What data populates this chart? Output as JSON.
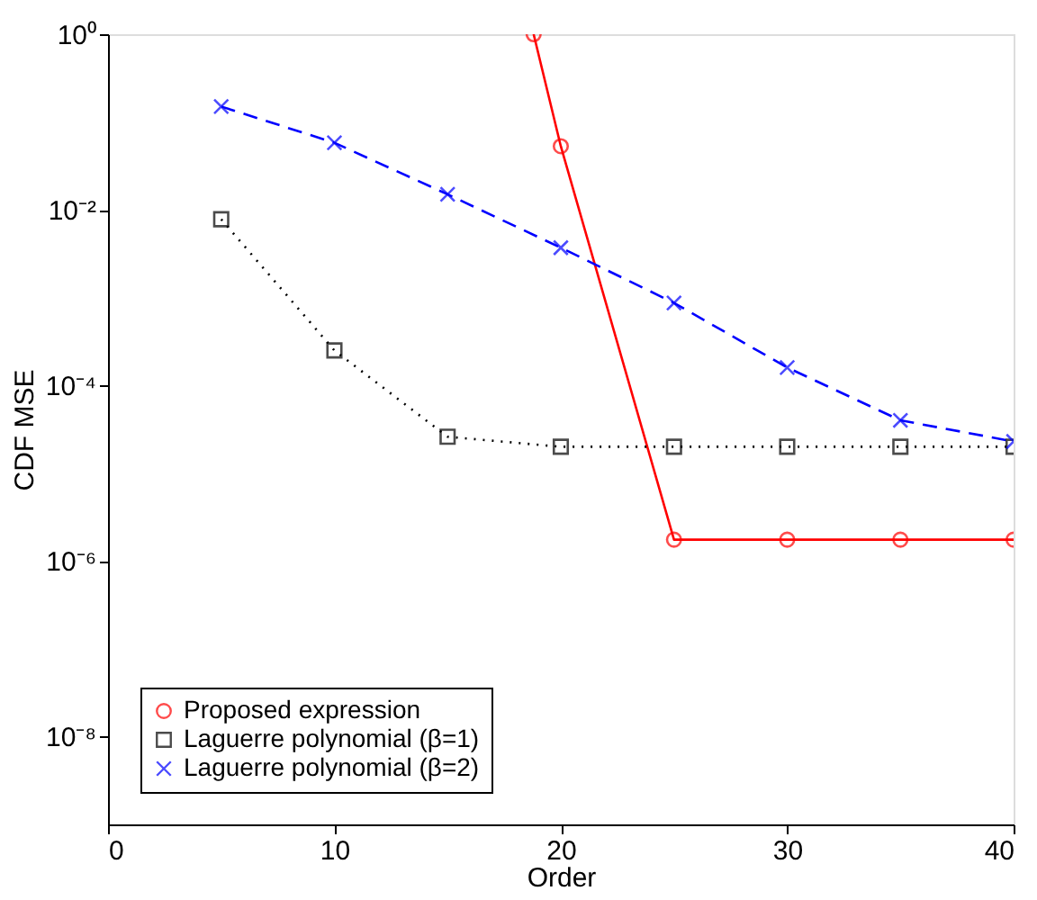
{
  "chart_data": {
    "type": "line",
    "xlabel": "Order",
    "ylabel": "CDF MSE",
    "log": "y",
    "grid": false,
    "legend": "bottom left",
    "xlim": [
      0,
      40
    ],
    "xticks": [
      0,
      10,
      20,
      30,
      40
    ],
    "ylim": [
      1e-09,
      1
    ],
    "yticks": [
      {
        "value": 1,
        "label": "10⁰"
      },
      {
        "value": 0.01,
        "label": "10⁻²"
      },
      {
        "value": 0.0001,
        "label": "10⁻⁴"
      },
      {
        "value": 1e-06,
        "label": "10⁻⁶"
      },
      {
        "value": 1e-08,
        "label": "10⁻⁸"
      }
    ],
    "series": [
      {
        "name": "Proposed expression",
        "color": "#ff0000",
        "marker": "circle",
        "line_style": "solid",
        "x": [
          18.8,
          20,
          25,
          30,
          35,
          40
        ],
        "values": [
          1,
          0.053,
          1.75e-06,
          1.75e-06,
          1.75e-06,
          1.75e-06
        ]
      },
      {
        "name": "Laguerre polynomial (β=1)",
        "color": "#000000",
        "marker": "square",
        "line_style": "dotted",
        "x": [
          5,
          10,
          15,
          20,
          25,
          30,
          35,
          40
        ],
        "values": [
          0.0078,
          0.00025,
          2.6e-05,
          2e-05,
          2e-05,
          2e-05,
          2e-05,
          2e-05
        ]
      },
      {
        "name": "Laguerre polynomial (β=2)",
        "color": "#0000ff",
        "marker": "cross",
        "line_style": "dashed",
        "x": [
          5,
          10,
          15,
          20,
          25,
          30,
          35,
          40
        ],
        "values": [
          0.15,
          0.058,
          0.015,
          0.0037,
          0.00087,
          0.00016,
          4e-05,
          2.3e-05
        ]
      }
    ]
  }
}
